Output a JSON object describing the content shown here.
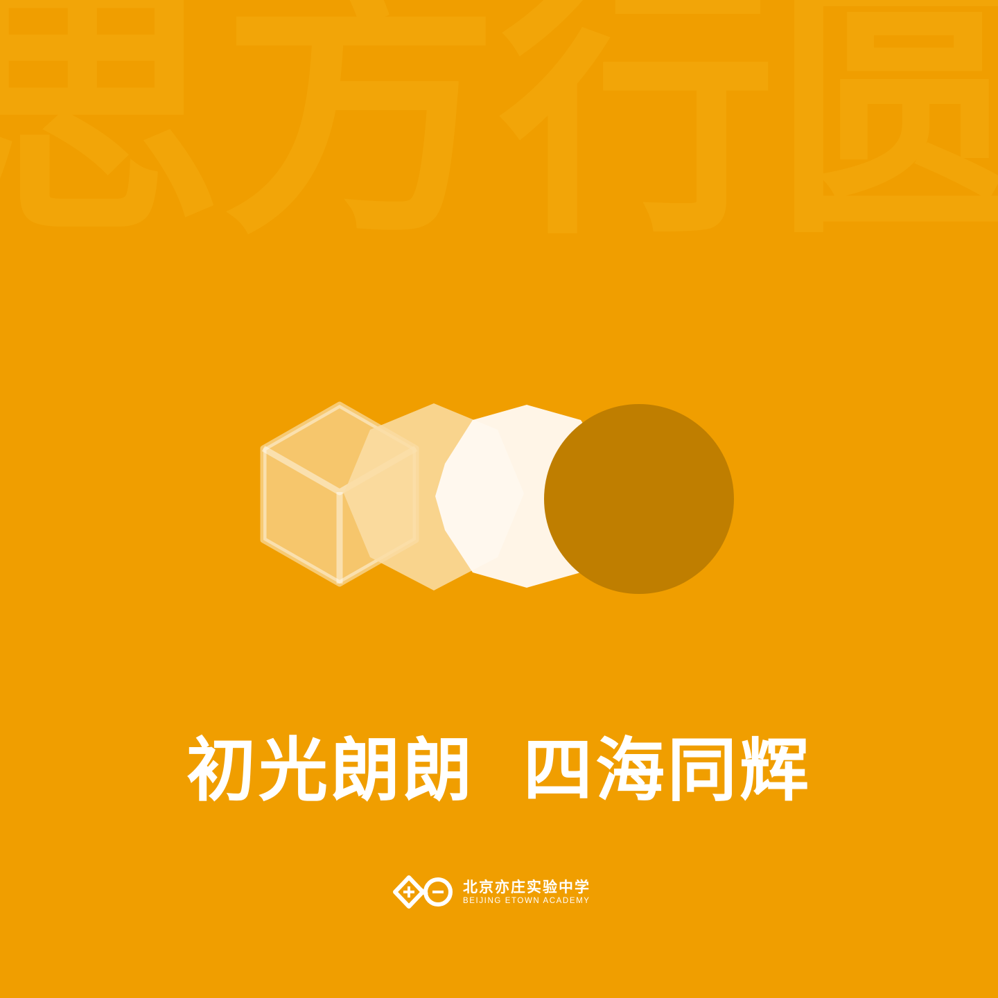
{
  "background_text": [
    "思",
    "方",
    "行",
    "圆"
  ],
  "slogan": {
    "part1": "初光朗朗",
    "part2": "四海同辉"
  },
  "logo": {
    "name_cn": "北京亦庄实验中学",
    "name_en": "BEIJING  ETOWN  ACADEMY"
  },
  "colors": {
    "background": "#F09E00",
    "watermark_text": "#F5AC10",
    "cube_fill": "#F6C66C",
    "octagon_fill": "#FADDA6",
    "decagon_fill": "#FFFAF3",
    "circle_fill": "#BF7E00",
    "text": "#FFFFFF"
  }
}
